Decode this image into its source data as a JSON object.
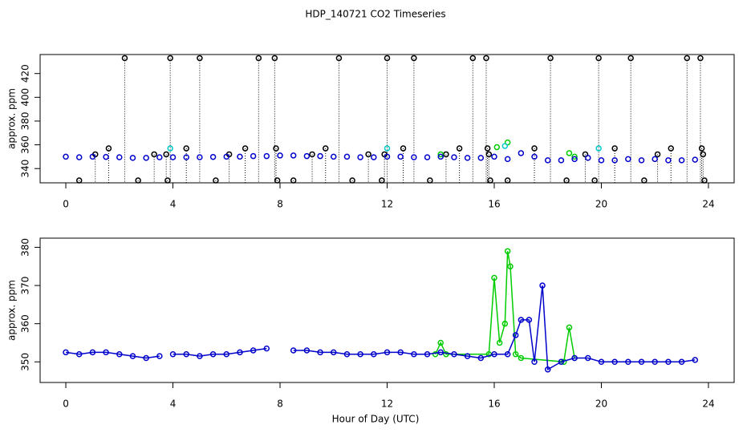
{
  "chart_data": [
    {
      "type": "scatter",
      "title": "HDP_140721  CO2 Timeseries",
      "y_label": "approx. ppm",
      "xlim": [
        -0.96,
        24.96
      ],
      "xticks": [
        0,
        4,
        8,
        12,
        16,
        20,
        24
      ],
      "ylim": [
        328,
        436
      ],
      "yticks": [
        340,
        360,
        380,
        400,
        420
      ],
      "series": [
        {
          "color": "#000000",
          "drop_lines": true,
          "x": [
            0.5,
            1.1,
            1.6,
            2.2,
            2.7,
            3.3,
            3.75,
            3.8,
            3.9,
            4.5,
            5,
            5.6,
            6.1,
            6.7,
            7.2,
            7.8,
            7.85,
            7.9,
            8.5,
            9.2,
            9.7,
            10.2,
            10.7,
            11.3,
            11.8,
            11.9,
            12,
            12.6,
            13,
            13.6,
            14.2,
            14.7,
            15.2,
            15.7,
            15.75,
            15.8,
            15.85,
            16.5,
            17.5,
            18.1,
            18.7,
            19.4,
            19.75,
            19.9,
            20.5,
            21.1,
            21.6,
            22.1,
            22.6,
            23.2,
            23.7,
            23.75,
            23.8,
            23.85
          ],
          "values": [
            330,
            352,
            357,
            433,
            330,
            352,
            352,
            330,
            433,
            357,
            433,
            330,
            352,
            357,
            433,
            433,
            357,
            330,
            330,
            352,
            357,
            433,
            330,
            352,
            330,
            352,
            433,
            357,
            433,
            330,
            352,
            357,
            433,
            433,
            357,
            352,
            330,
            330,
            357,
            433,
            330,
            352,
            330,
            433,
            357,
            433,
            330,
            352,
            357,
            433,
            433,
            357,
            352,
            330
          ]
        },
        {
          "color": "#00cc00",
          "x": [
            14,
            16.1,
            16.5,
            18.8,
            19
          ],
          "values": [
            352,
            358,
            362,
            353,
            350
          ]
        },
        {
          "color": "#0000cc",
          "x": [
            0,
            0.5,
            1,
            1.5,
            2,
            2.5,
            3,
            3.5,
            4,
            4.5,
            5,
            5.5,
            6,
            6.5,
            7,
            7.5,
            8,
            8.5,
            9,
            9.5,
            10,
            10.5,
            11,
            11.5,
            12,
            12.5,
            13,
            13.5,
            14,
            14.5,
            15,
            15.5,
            16,
            16.5,
            17,
            17.5,
            18,
            18.5,
            19,
            19.5,
            20,
            20.5,
            21,
            21.5,
            22,
            22.5,
            23,
            23.5
          ],
          "values": [
            350,
            349.5,
            350,
            349.8,
            349.5,
            349,
            349,
            349.5,
            349.5,
            349.5,
            349.5,
            349.8,
            350,
            350,
            350.5,
            350.5,
            351,
            351,
            350.5,
            350.5,
            350,
            350,
            349.5,
            349.5,
            350,
            350,
            349.5,
            349.5,
            350,
            349.5,
            349,
            349,
            350,
            348,
            353,
            350,
            347,
            347,
            348,
            349,
            347,
            347,
            348,
            347,
            348,
            347,
            347,
            347.5
          ]
        },
        {
          "color": "#00cccc",
          "x": [
            3.9,
            12,
            16.4,
            19.9
          ],
          "values": [
            357,
            357,
            359,
            357
          ]
        }
      ]
    },
    {
      "type": "line",
      "y_label": "approx. ppm",
      "x_label": "Hour of Day (UTC)",
      "xlim": [
        -0.96,
        24.96
      ],
      "xticks": [
        0,
        4,
        8,
        12,
        16,
        20,
        24
      ],
      "ylim": [
        344.6,
        382.4
      ],
      "yticks": [
        350,
        360,
        370,
        380
      ],
      "series": [
        {
          "color": "#00cc00",
          "x": [
            13.8,
            14,
            14.2,
            15.8,
            16,
            16.2,
            16.4,
            16.5,
            16.6,
            16.8,
            17,
            18.6,
            18.8,
            19
          ],
          "values": [
            352,
            355,
            352,
            352,
            372,
            355,
            360,
            379,
            375,
            352,
            351,
            350,
            359,
            351
          ]
        },
        {
          "color": "#0000cc",
          "x": [
            0,
            0.5,
            1,
            1.5,
            2,
            2.5,
            3,
            3.5,
            3.8,
            4,
            4.5,
            5,
            5.5,
            6,
            6.5,
            7,
            7.5,
            8,
            8.5,
            9,
            9.5,
            10,
            10.5,
            11,
            11.5,
            12,
            12.5,
            13,
            13.5,
            14,
            14.5,
            15,
            15.5,
            16,
            16.5,
            16.8,
            17,
            17.3,
            17.5,
            17.8,
            18,
            18.5,
            19,
            19.5,
            20,
            20.5,
            21,
            21.5,
            22,
            22.5,
            23,
            23.5
          ],
          "values": [
            352.5,
            352,
            352.5,
            352.5,
            352,
            351.5,
            351,
            351.5,
            null,
            352,
            352,
            351.5,
            352,
            352,
            352.5,
            353,
            353.5,
            null,
            353,
            353,
            352.5,
            352.5,
            352,
            352,
            352,
            352.5,
            352.5,
            352,
            352,
            352.5,
            352,
            351.5,
            351,
            352,
            352,
            357,
            361,
            361,
            350,
            370,
            348,
            350,
            351,
            351,
            350,
            350,
            350,
            350,
            350,
            350,
            350,
            350.5
          ]
        }
      ]
    }
  ]
}
